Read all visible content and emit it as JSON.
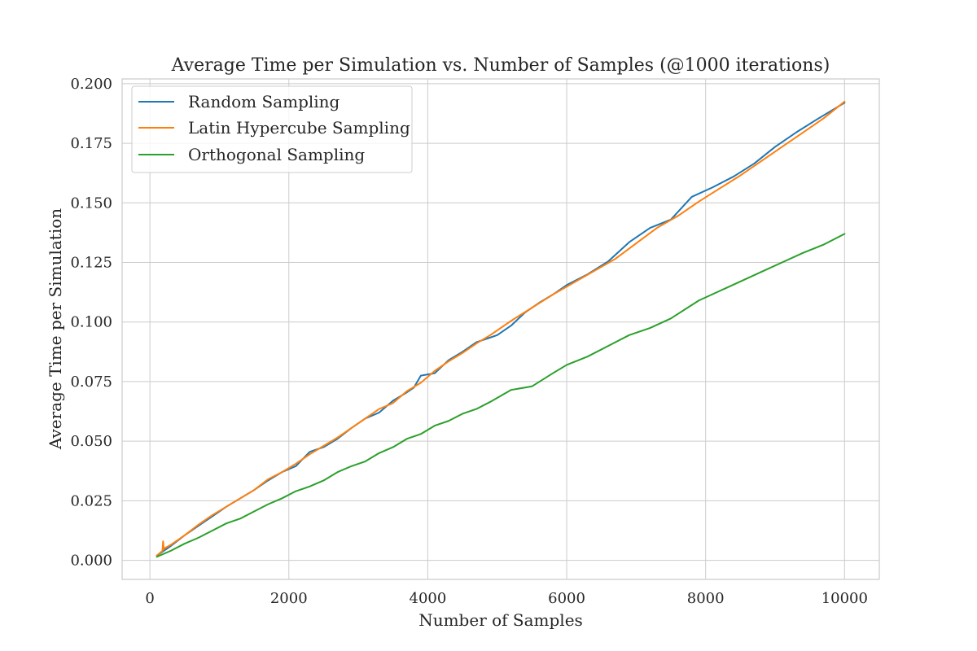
{
  "chart_data": {
    "type": "line",
    "title": "Average Time per Simulation vs. Number of Samples (@1000 iterations)",
    "xlabel": "Number of Samples",
    "ylabel": "Average Time per Simulation",
    "xlim": [
      -400,
      10500
    ],
    "ylim": [
      -0.008,
      0.202
    ],
    "xticks": [
      0,
      2000,
      4000,
      6000,
      8000,
      10000
    ],
    "xtick_labels": [
      "0",
      "2000",
      "4000",
      "6000",
      "8000",
      "10000"
    ],
    "yticks": [
      0.0,
      0.025,
      0.05,
      0.075,
      0.1,
      0.125,
      0.15,
      0.175,
      0.2
    ],
    "ytick_labels": [
      "0.000",
      "0.025",
      "0.050",
      "0.075",
      "0.100",
      "0.125",
      "0.150",
      "0.175",
      "0.200"
    ],
    "grid": true,
    "legend_position": "top-left",
    "series": [
      {
        "name": "Random Sampling",
        "color": "#1f77b4",
        "x": [
          100,
          300,
          500,
          700,
          900,
          1100,
          1300,
          1500,
          1700,
          1900,
          2100,
          2300,
          2500,
          2700,
          2900,
          3100,
          3300,
          3500,
          3700,
          3800,
          3900,
          4000,
          4100,
          4300,
          4500,
          4700,
          4900,
          5000,
          5200,
          5400,
          5600,
          5800,
          6000,
          6300,
          6600,
          6900,
          7200,
          7500,
          7800,
          8100,
          8400,
          8700,
          9000,
          9300,
          9600,
          10000
        ],
        "y": [
          0.002,
          0.006,
          0.0105,
          0.0145,
          0.0185,
          0.0225,
          0.026,
          0.0295,
          0.0335,
          0.037,
          0.0395,
          0.0455,
          0.0475,
          0.051,
          0.0555,
          0.0595,
          0.062,
          0.067,
          0.0705,
          0.0725,
          0.0775,
          0.078,
          0.0785,
          0.084,
          0.0875,
          0.0915,
          0.0935,
          0.0945,
          0.0985,
          0.104,
          0.108,
          0.1115,
          0.1155,
          0.12,
          0.1255,
          0.1335,
          0.1395,
          0.143,
          0.1525,
          0.1565,
          0.161,
          0.1665,
          0.1735,
          0.1795,
          0.185,
          0.192
        ]
      },
      {
        "name": "Latin Hypercube Sampling",
        "color": "#ff7f0e",
        "x": [
          100,
          180,
          190,
          200,
          210,
          300,
          500,
          700,
          900,
          1100,
          1300,
          1500,
          1700,
          1900,
          2100,
          2300,
          2500,
          2700,
          2900,
          3100,
          3300,
          3500,
          3700,
          3900,
          4100,
          4300,
          4500,
          4700,
          4900,
          5200,
          5500,
          5800,
          6100,
          6400,
          6700,
          7000,
          7300,
          7600,
          7900,
          8200,
          8500,
          8800,
          9100,
          9400,
          9700,
          10000
        ],
        "y": [
          0.002,
          0.004,
          0.008,
          0.0045,
          0.005,
          0.0065,
          0.0105,
          0.015,
          0.019,
          0.0225,
          0.026,
          0.0295,
          0.034,
          0.037,
          0.0405,
          0.0445,
          0.048,
          0.0515,
          0.0555,
          0.0595,
          0.0635,
          0.066,
          0.071,
          0.0745,
          0.0795,
          0.0835,
          0.087,
          0.091,
          0.0945,
          0.1005,
          0.106,
          0.1115,
          0.1165,
          0.1215,
          0.1265,
          0.133,
          0.1395,
          0.1445,
          0.1505,
          0.156,
          0.1615,
          0.1675,
          0.1735,
          0.1795,
          0.1855,
          0.1925
        ]
      },
      {
        "name": "Orthogonal Sampling",
        "color": "#2ca02c",
        "x": [
          100,
          300,
          500,
          700,
          900,
          1100,
          1300,
          1500,
          1700,
          1900,
          2100,
          2300,
          2500,
          2700,
          2900,
          3100,
          3300,
          3500,
          3700,
          3900,
          4100,
          4300,
          4500,
          4700,
          4900,
          5200,
          5500,
          5800,
          6000,
          6300,
          6600,
          6900,
          7200,
          7500,
          7900,
          8200,
          8500,
          8800,
          9100,
          9400,
          9700,
          10000
        ],
        "y": [
          0.0015,
          0.004,
          0.007,
          0.0095,
          0.0125,
          0.0155,
          0.0175,
          0.0205,
          0.0235,
          0.026,
          0.029,
          0.031,
          0.0335,
          0.037,
          0.0395,
          0.0415,
          0.045,
          0.0475,
          0.051,
          0.053,
          0.0565,
          0.0585,
          0.0615,
          0.0635,
          0.0665,
          0.0715,
          0.073,
          0.0785,
          0.082,
          0.0855,
          0.09,
          0.0945,
          0.0975,
          0.1015,
          0.109,
          0.113,
          0.117,
          0.121,
          0.125,
          0.129,
          0.1325,
          0.137
        ]
      }
    ]
  }
}
